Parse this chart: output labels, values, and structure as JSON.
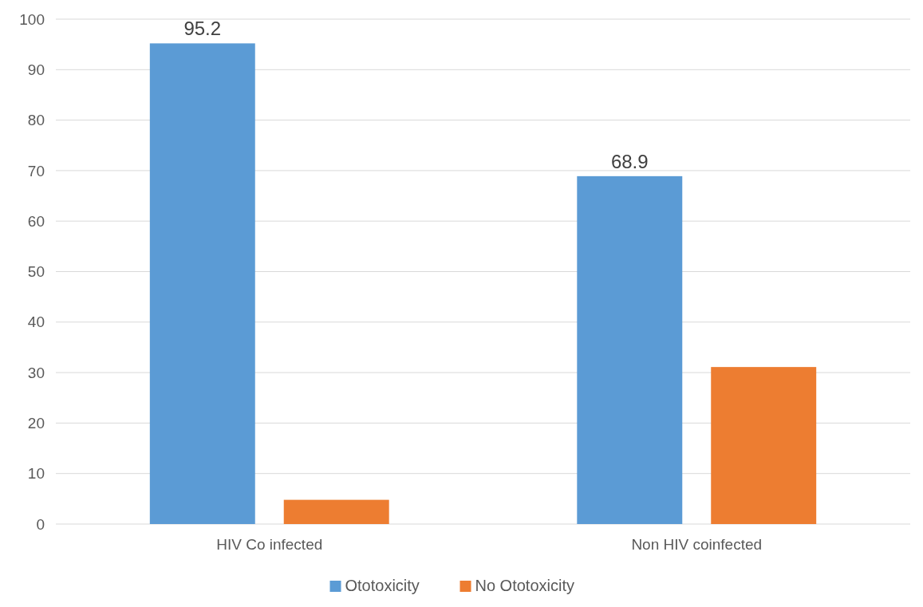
{
  "chart_data": {
    "type": "bar",
    "categories": [
      "HIV Co infected",
      "Non HIV coinfected"
    ],
    "series": [
      {
        "name": "Ototoxicity",
        "color": "#5b9bd5",
        "values": [
          95.2,
          68.9
        ],
        "value_labels": [
          "95.2",
          "68.9"
        ]
      },
      {
        "name": "No Ototoxicity",
        "color": "#ed7d31",
        "values": [
          4.8,
          31.1
        ],
        "value_labels": [
          null,
          null
        ]
      }
    ],
    "ylim": [
      0,
      100
    ],
    "yticks": [
      0,
      10,
      20,
      30,
      40,
      50,
      60,
      70,
      80,
      90,
      100
    ],
    "grid": "y",
    "legend": "bottom"
  }
}
